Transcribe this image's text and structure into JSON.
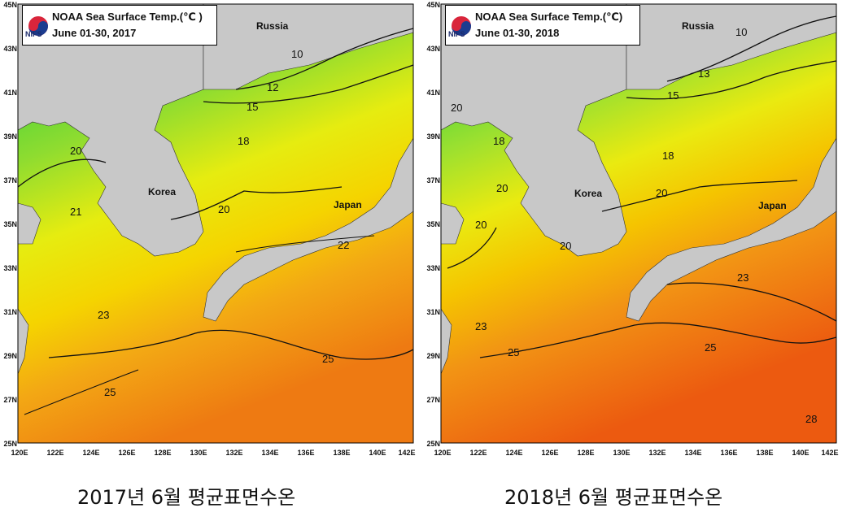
{
  "maps": [
    {
      "title": "NOAA Sea Surface Temp.(℃ )",
      "period": "June 01-30, 2017",
      "logo_text": "NIFS",
      "caption": "2017년 6월 평균표면수온",
      "lat_labels": [
        "45N",
        "43N",
        "41N",
        "39N",
        "37N",
        "35N",
        "33N",
        "31N",
        "29N",
        "27N",
        "25N"
      ],
      "lon_labels": [
        "120E",
        "122E",
        "124E",
        "126E",
        "128E",
        "130E",
        "132E",
        "134E",
        "136E",
        "138E",
        "140E",
        "142E"
      ],
      "place_labels": [
        "Russia",
        "Korea",
        "Japan"
      ],
      "contour_labels": [
        "10",
        "12",
        "15",
        "18",
        "20",
        "20",
        "21",
        "22",
        "23",
        "25",
        "25"
      ]
    },
    {
      "title": "NOAA Sea Surface Temp.(℃)",
      "period": "June 01-30, 2018",
      "logo_text": "NIFS",
      "caption": "2018년 6월 평균표면수온",
      "lat_labels": [
        "45N",
        "43N",
        "41N",
        "39N",
        "37N",
        "35N",
        "33N",
        "31N",
        "29N",
        "27N",
        "25N"
      ],
      "lon_labels": [
        "120E",
        "122E",
        "124E",
        "126E",
        "128E",
        "130E",
        "132E",
        "134E",
        "136E",
        "138E",
        "140E",
        "142E"
      ],
      "place_labels": [
        "Russia",
        "Korea",
        "Japan"
      ],
      "contour_labels": [
        "10",
        "13",
        "15",
        "18",
        "20",
        "20",
        "20",
        "20",
        "20",
        "23",
        "23",
        "25",
        "25",
        "28"
      ]
    }
  ],
  "colors": {
    "land": "#c8c8c8",
    "sst_cold": "#2ec8e0",
    "sst_cool": "#3cd23c",
    "sst_mild": "#b4e628",
    "sst_warm": "#f5e600",
    "sst_hot": "#f09a10",
    "sst_hottest": "#ee6410"
  }
}
